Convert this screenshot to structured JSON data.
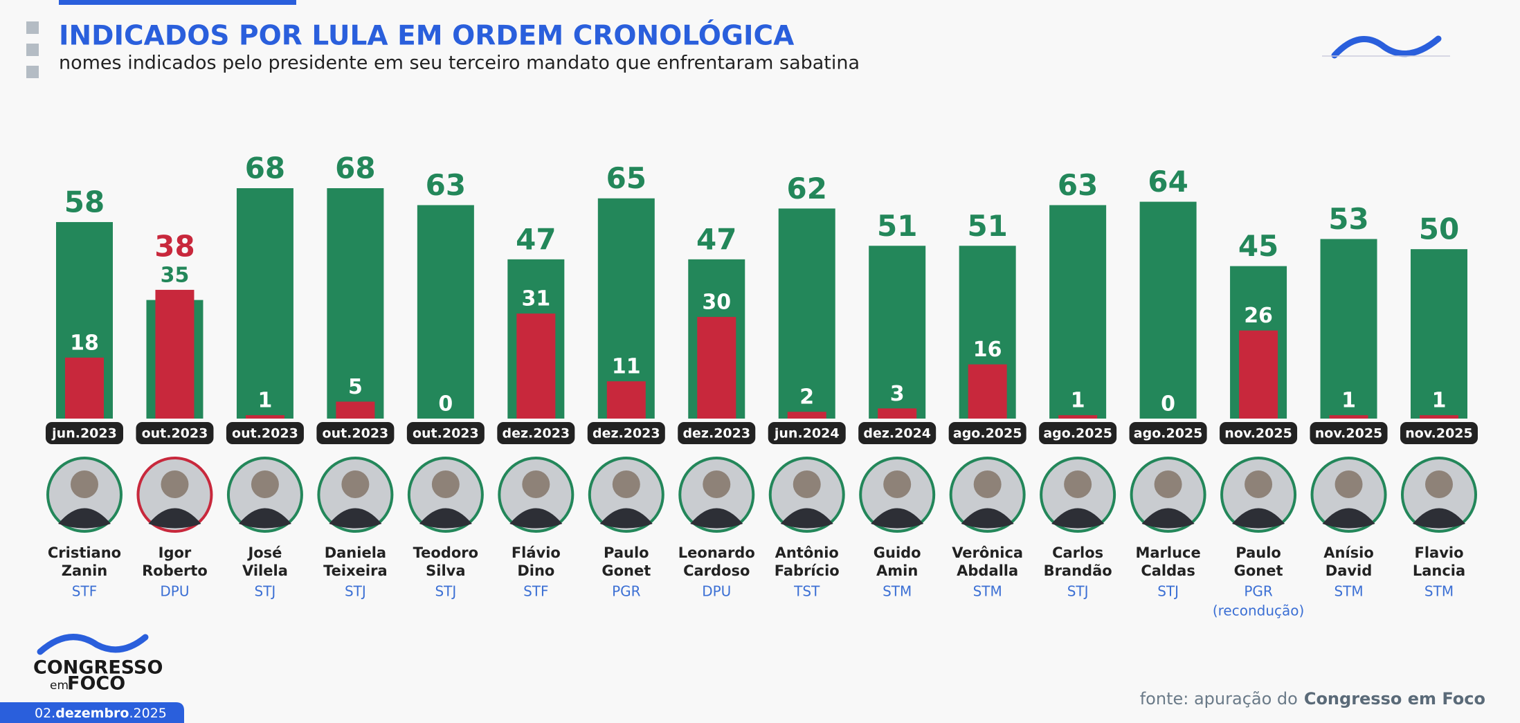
{
  "header": {
    "title": "INDICADOS POR LULA EM ORDEM CRONOLÓGICA",
    "subtitle": "nomes indicados pelo presidente em seu terceiro mandato que enfrentaram sabatina"
  },
  "chart_data": {
    "type": "bar",
    "categories": [
      "jun.2023",
      "out.2023",
      "out.2023",
      "out.2023",
      "out.2023",
      "dez.2023",
      "dez.2023",
      "dez.2023",
      "jun.2024",
      "dez.2024",
      "ago.2025",
      "ago.2025",
      "ago.2025",
      "nov.2025",
      "nov.2025",
      "nov.2025"
    ],
    "series": [
      {
        "color": "#23875a",
        "values": [
          58,
          35,
          68,
          68,
          63,
          47,
          65,
          47,
          62,
          51,
          51,
          63,
          64,
          45,
          53,
          50
        ]
      },
      {
        "color": "#c8283c",
        "values": [
          18,
          38,
          1,
          5,
          0,
          31,
          11,
          30,
          2,
          3,
          16,
          1,
          0,
          26,
          1,
          1
        ]
      }
    ],
    "nominees": [
      {
        "name": [
          "Cristiano",
          "Zanin"
        ],
        "org": [
          "STF"
        ]
      },
      {
        "name": [
          "Igor",
          "Roberto"
        ],
        "org": [
          "DPU"
        ]
      },
      {
        "name": [
          "José",
          "Vilela"
        ],
        "org": [
          "STJ"
        ]
      },
      {
        "name": [
          "Daniela",
          "Teixeira"
        ],
        "org": [
          "STJ"
        ]
      },
      {
        "name": [
          "Teodoro",
          "Silva"
        ],
        "org": [
          "STJ"
        ]
      },
      {
        "name": [
          "Flávio",
          "Dino"
        ],
        "org": [
          "STF"
        ]
      },
      {
        "name": [
          "Paulo",
          "Gonet"
        ],
        "org": [
          "PGR"
        ]
      },
      {
        "name": [
          "Leonardo",
          "Cardoso"
        ],
        "org": [
          "DPU"
        ]
      },
      {
        "name": [
          "Antônio",
          "Fabrício"
        ],
        "org": [
          "TST"
        ]
      },
      {
        "name": [
          "Guido",
          "Amin"
        ],
        "org": [
          "STM"
        ]
      },
      {
        "name": [
          "Verônica",
          "Abdalla"
        ],
        "org": [
          "STM"
        ]
      },
      {
        "name": [
          "Carlos",
          "Brandão"
        ],
        "org": [
          "STJ"
        ]
      },
      {
        "name": [
          "Marluce",
          "Caldas"
        ],
        "org": [
          "STJ"
        ]
      },
      {
        "name": [
          "Paulo",
          "Gonet"
        ],
        "org": [
          "PGR",
          "(recondução)"
        ]
      },
      {
        "name": [
          "Anísio",
          "David"
        ],
        "org": [
          "STM"
        ]
      },
      {
        "name": [
          "Flavio",
          "Lancia"
        ],
        "org": [
          "STM"
        ]
      }
    ]
  },
  "logo": {
    "line1": "CONGRESSO",
    "small": "em",
    "line2": "FOCO"
  },
  "footer": {
    "date": [
      "02.",
      "dezembro",
      ".2025"
    ],
    "source": [
      "fonte: apuração do",
      "Congresso em Foco"
    ]
  }
}
